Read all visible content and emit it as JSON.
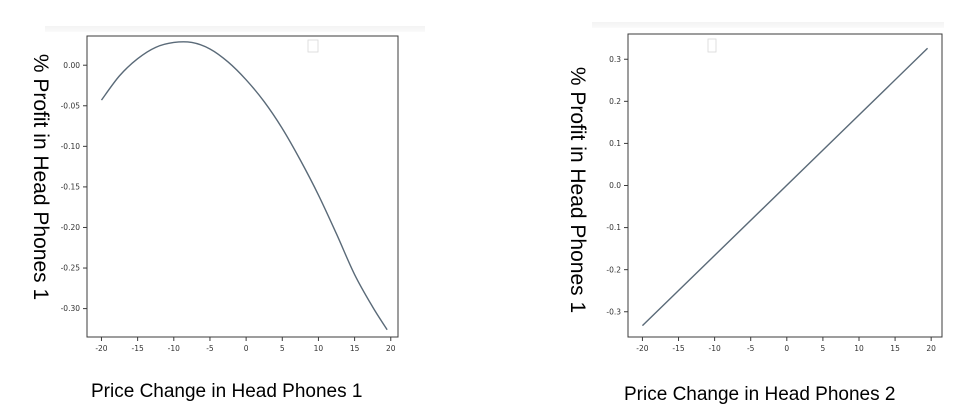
{
  "charts": [
    {
      "ylabel": "% Profit in Head Phones 1",
      "caption": "Price Change  in Head Phones 1"
    },
    {
      "ylabel": "% Profit in Head Phones 1",
      "caption": "Price Change  in Head Phones 2"
    }
  ],
  "chart_data": [
    {
      "type": "line",
      "xlabel": "",
      "ylabel": "% Profit in Head Phones 1",
      "xlim": [
        -22,
        21
      ],
      "ylim": [
        -0.335,
        0.036
      ],
      "xticks": [
        -20,
        -15,
        -10,
        -5,
        0,
        5,
        10,
        15,
        20
      ],
      "yticks": [
        0.0,
        -0.05,
        -0.1,
        -0.15,
        -0.2,
        -0.25,
        -0.3
      ],
      "ytick_labels": [
        "0.00",
        "-0.05",
        "-0.10",
        "-0.15",
        "-0.20",
        "-0.25",
        "-0.30"
      ],
      "x": [
        -20,
        -17.5,
        -15,
        -12.5,
        -10,
        -7.5,
        -5,
        -2.5,
        0,
        2.5,
        5,
        7.5,
        10,
        12.5,
        15,
        17.5,
        19.5
      ],
      "y": [
        -0.043,
        -0.013,
        0.008,
        0.022,
        0.028,
        0.028,
        0.02,
        0.004,
        -0.018,
        -0.045,
        -0.078,
        -0.117,
        -0.16,
        -0.208,
        -0.258,
        -0.298,
        -0.326
      ],
      "grid": false
    },
    {
      "type": "line",
      "xlabel": "",
      "ylabel": "% Profit in Head Phones 1",
      "xlim": [
        -22,
        21.5
      ],
      "ylim": [
        -0.36,
        0.36
      ],
      "xticks": [
        -20,
        -15,
        -10,
        -5,
        0,
        5,
        10,
        15,
        20
      ],
      "yticks": [
        0.3,
        0.2,
        0.1,
        0.0,
        -0.1,
        -0.2,
        -0.3
      ],
      "ytick_labels": [
        "0.3",
        "0.2",
        "0.1",
        "0.0",
        "-0.1",
        "-0.2",
        "-0.3"
      ],
      "x": [
        -20,
        19.5
      ],
      "y": [
        -0.333,
        0.326
      ],
      "grid": false
    }
  ]
}
